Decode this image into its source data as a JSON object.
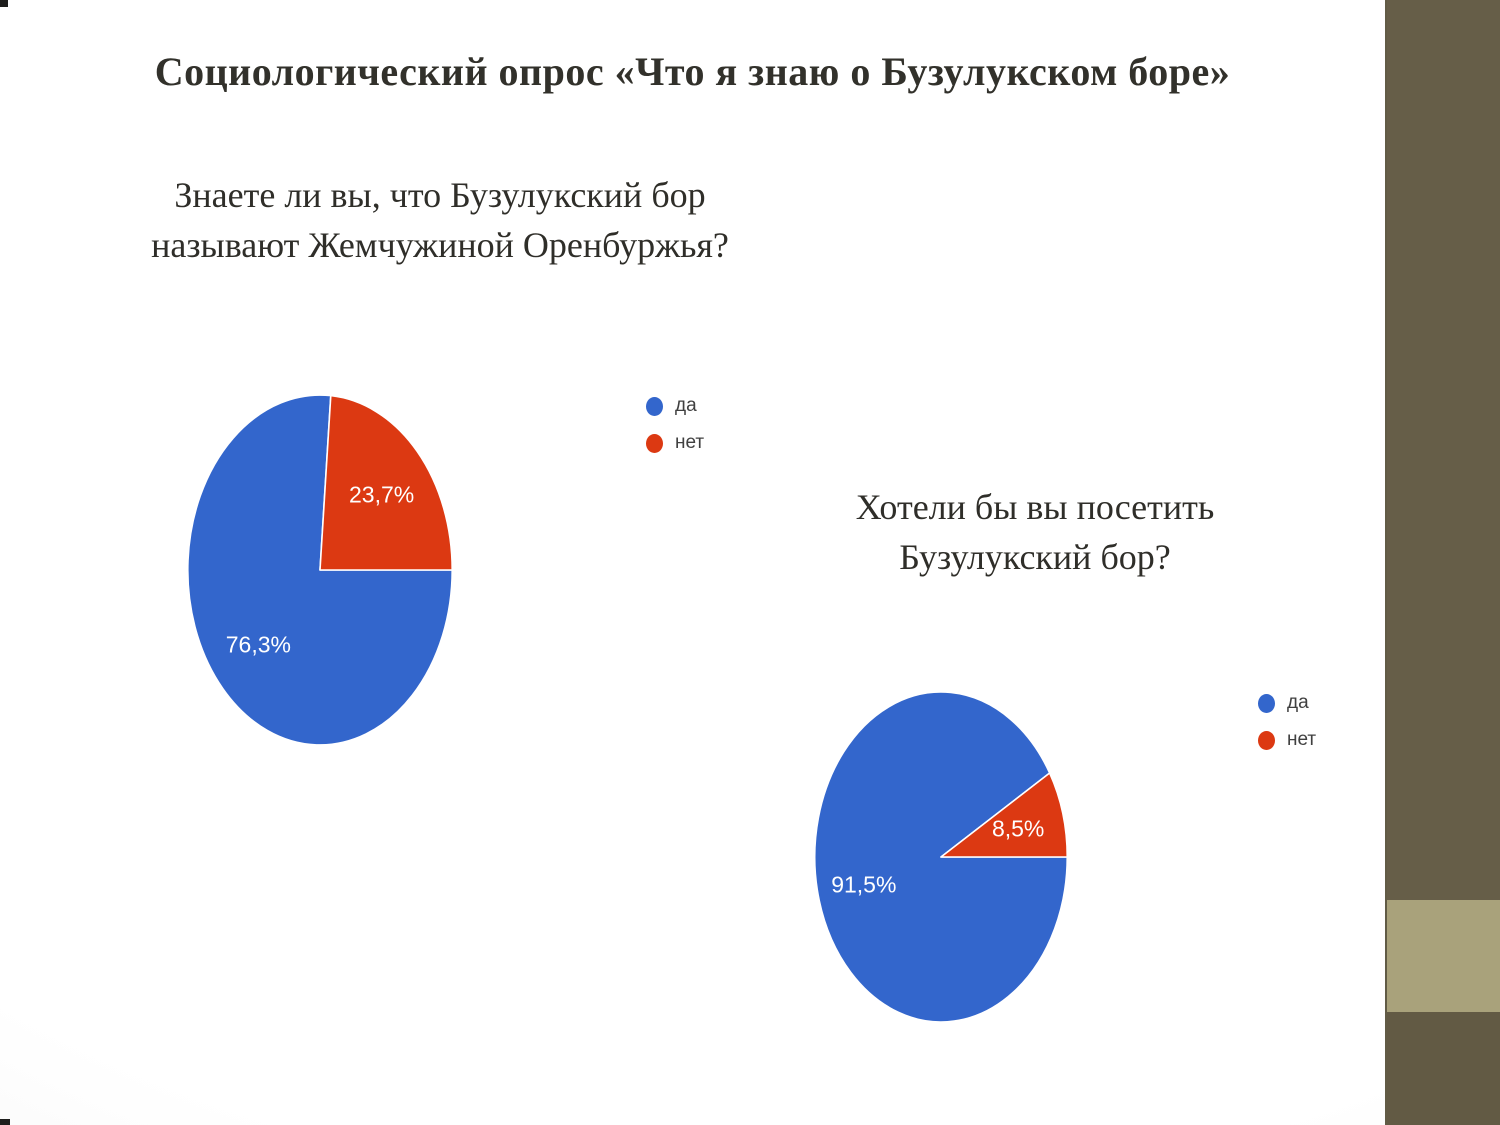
{
  "slide": {
    "title": "Социологический опрос «Что я знаю о Бузулукском боре»"
  },
  "questions": [
    {
      "line1": "Знаете ли вы, что Бузулукский бор",
      "line2": "называют Жемчужиной Оренбуржья?"
    },
    {
      "line1": "Хотели бы вы посетить",
      "line2": "Бузулукский бор?"
    }
  ],
  "chart_data": [
    {
      "type": "pie",
      "title": "Знаете ли вы, что Бузулукский бор называют Жемчужиной Оренбуржья?",
      "labels": [
        "да",
        "нет"
      ],
      "values": [
        76.3,
        23.7
      ],
      "value_labels": [
        "76,3%",
        "23,7%"
      ],
      "colors": [
        "#3366cc",
        "#dc3912"
      ],
      "shape": "ellipse",
      "start_angle_deg": 90,
      "direction": "clockwise",
      "legend_position": "right"
    },
    {
      "type": "pie",
      "title": "Хотели бы вы посетить Бузулукский бор?",
      "labels": [
        "да",
        "нет"
      ],
      "values": [
        91.5,
        8.5
      ],
      "value_labels": [
        "91,5%",
        "8,5%"
      ],
      "colors": [
        "#3366cc",
        "#dc3912"
      ],
      "shape": "ellipse",
      "start_angle_deg": 90,
      "direction": "clockwise",
      "legend_position": "right"
    }
  ],
  "theme": {
    "pie_yes_color": "#3366cc",
    "pie_no_color": "#dc3912",
    "sidebar_dark": "#665e48",
    "sidebar_light": "#a9a27b",
    "title_color": "#32312b"
  }
}
